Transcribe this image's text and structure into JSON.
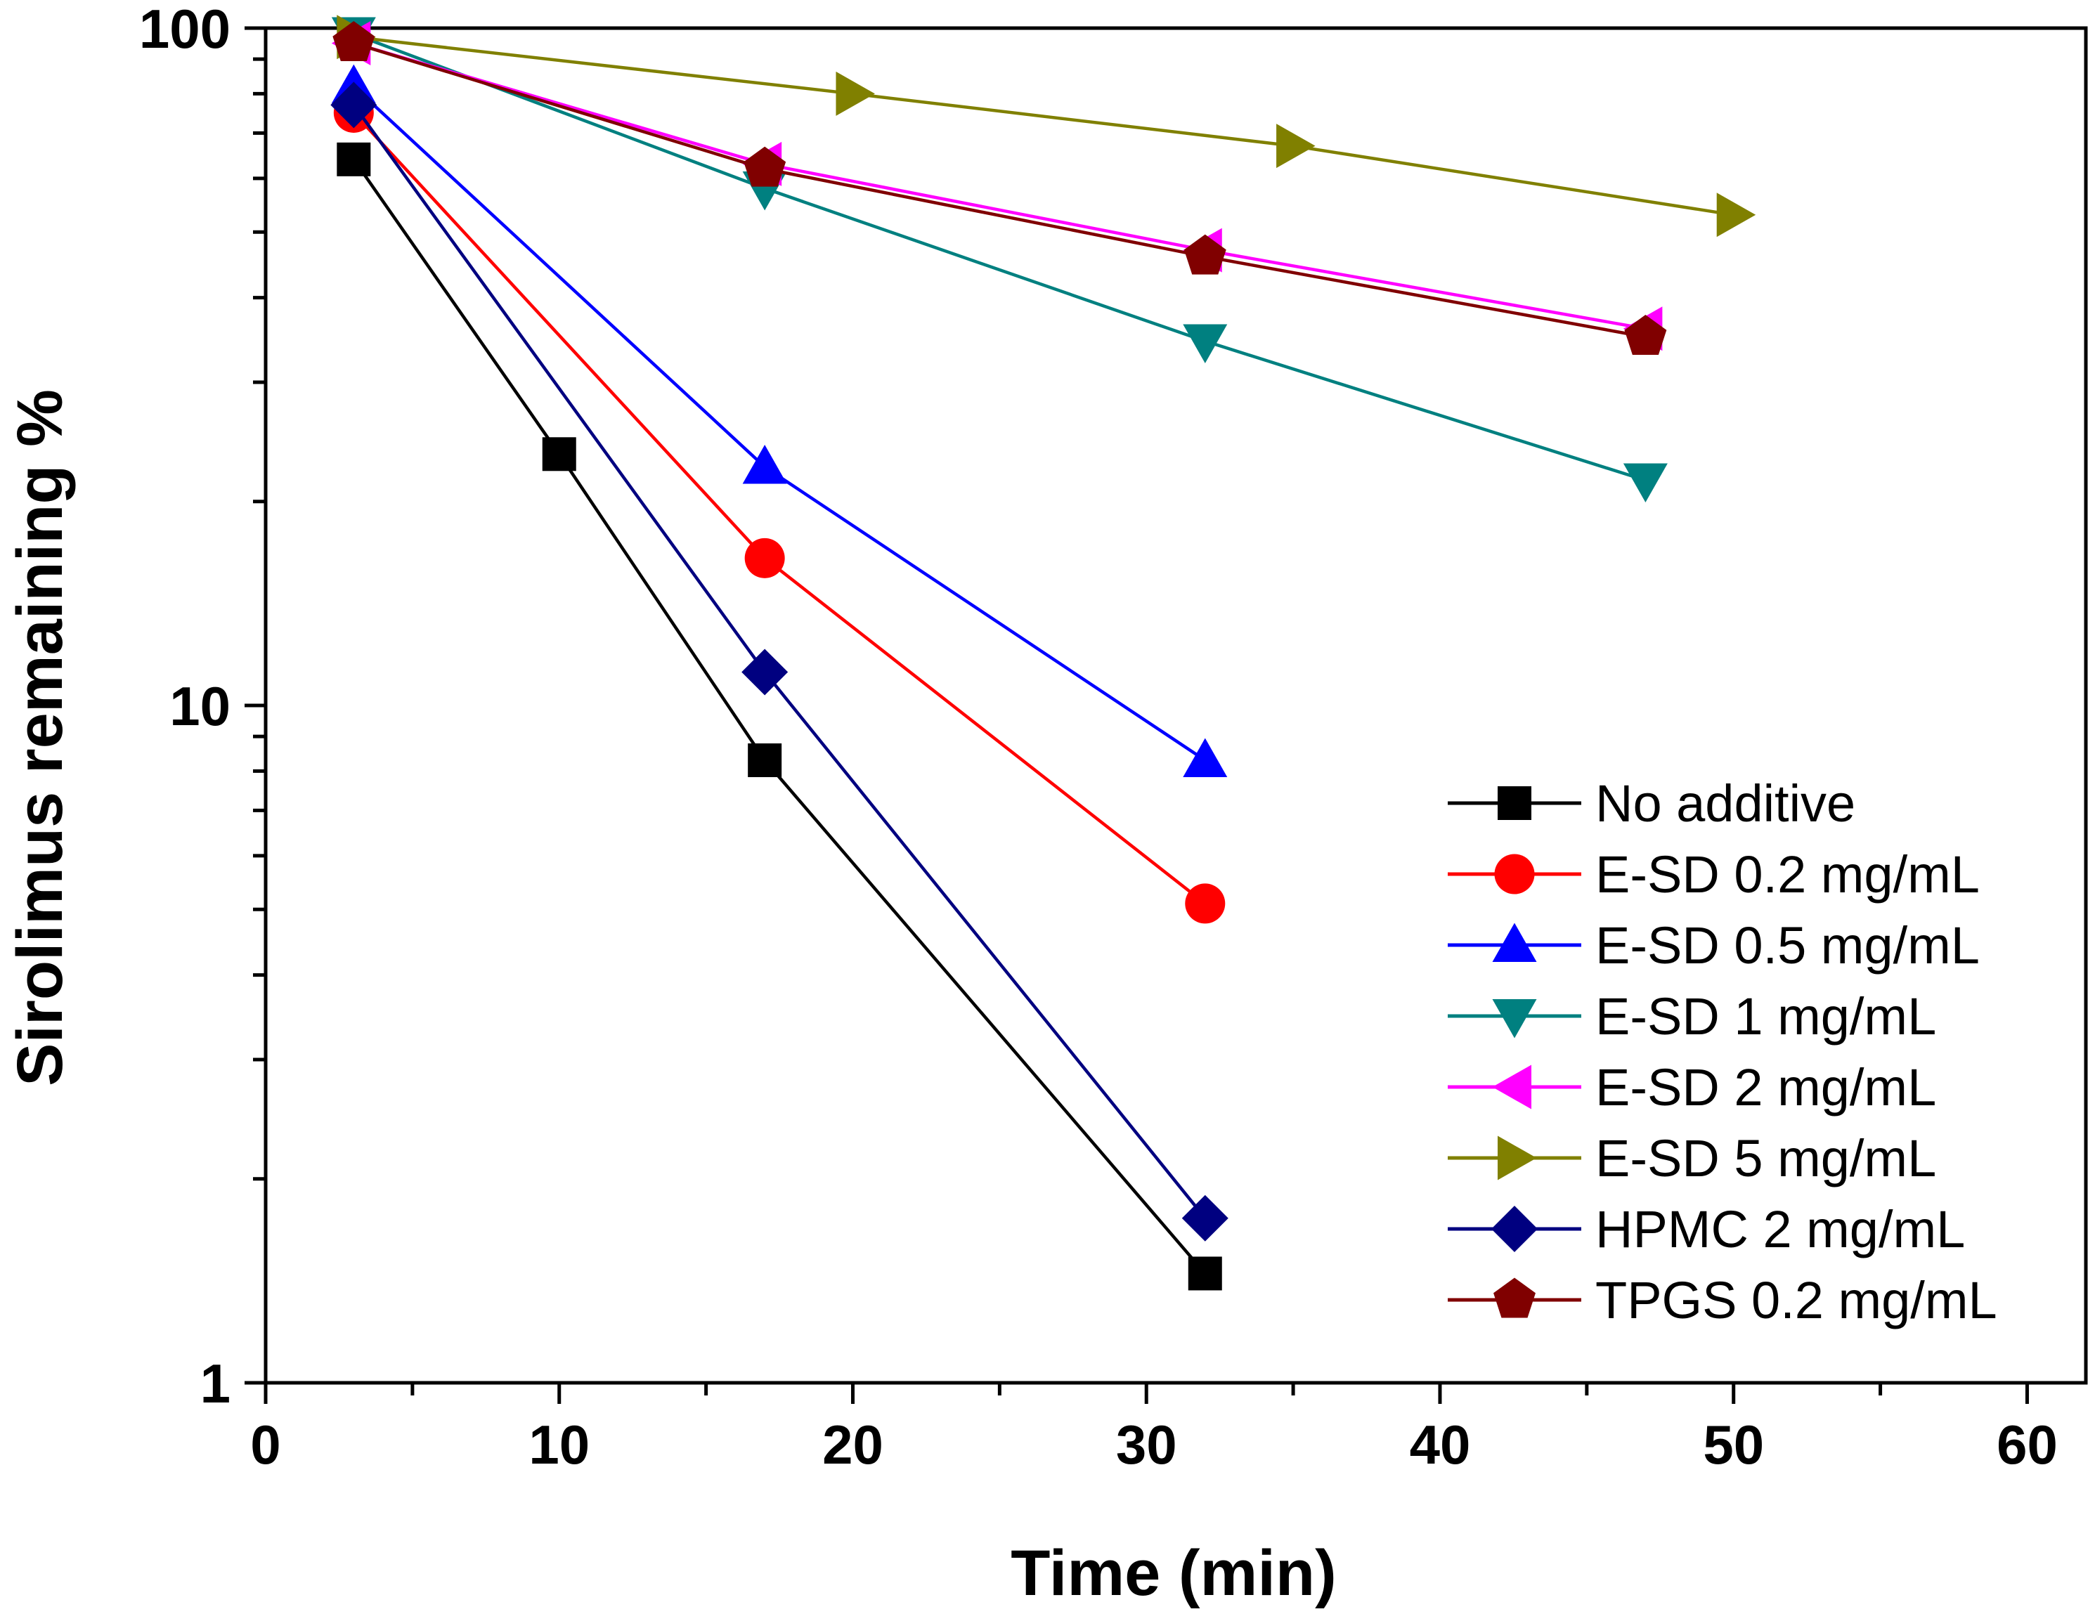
{
  "chart_data": {
    "type": "line",
    "y_scale": "log",
    "xlabel": "Time (min)",
    "ylabel": "Sirolimus remaining %",
    "xlim": [
      0,
      62
    ],
    "ylim": [
      1,
      100
    ],
    "x_ticks": [
      0,
      10,
      20,
      30,
      40,
      50,
      60
    ],
    "x_tick_labels": [
      "0",
      "10",
      "20",
      "30",
      "40",
      "50",
      "60"
    ],
    "y_major_ticks": [
      1,
      10,
      100
    ],
    "y_tick_labels": [
      "1",
      "10",
      "100"
    ],
    "legend_position": "bottom-right",
    "series": [
      {
        "name": "No additive",
        "color": "#000000",
        "marker": "square",
        "x": [
          3,
          10,
          17,
          32
        ],
        "values": [
          64,
          23.5,
          8.3,
          1.45
        ]
      },
      {
        "name": "E-SD 0.2 mg/mL",
        "color": "#ff0000",
        "marker": "circle",
        "x": [
          3,
          17,
          32
        ],
        "values": [
          75,
          16.5,
          5.1
        ]
      },
      {
        "name": "E-SD 0.5 mg/mL",
        "color": "#0000ff",
        "marker": "triangle-up",
        "x": [
          3,
          17,
          32
        ],
        "values": [
          82,
          22.5,
          8.3
        ]
      },
      {
        "name": "E-SD 1 mg/mL",
        "color": "#008080",
        "marker": "triangle-down",
        "x": [
          3,
          17,
          32,
          47
        ],
        "values": [
          98,
          58,
          34.5,
          21.5
        ]
      },
      {
        "name": "E-SD 2 mg/mL",
        "color": "#ff00ff",
        "marker": "triangle-left",
        "x": [
          3,
          17,
          32,
          47
        ],
        "values": [
          95,
          63,
          47,
          36
        ]
      },
      {
        "name": "E-SD 5 mg/mL",
        "color": "#808000",
        "marker": "triangle-right",
        "x": [
          3,
          20,
          35,
          50
        ],
        "values": [
          97,
          80,
          67,
          53
        ]
      },
      {
        "name": "HPMC 2 mg/mL",
        "color": "#000080",
        "marker": "diamond",
        "x": [
          3,
          17,
          32
        ],
        "values": [
          77,
          11.2,
          1.75
        ]
      },
      {
        "name": "TPGS 0.2 mg/mL",
        "color": "#800000",
        "marker": "pentagon",
        "x": [
          3,
          17,
          32,
          47
        ],
        "values": [
          95,
          62,
          46,
          35
        ]
      }
    ]
  }
}
